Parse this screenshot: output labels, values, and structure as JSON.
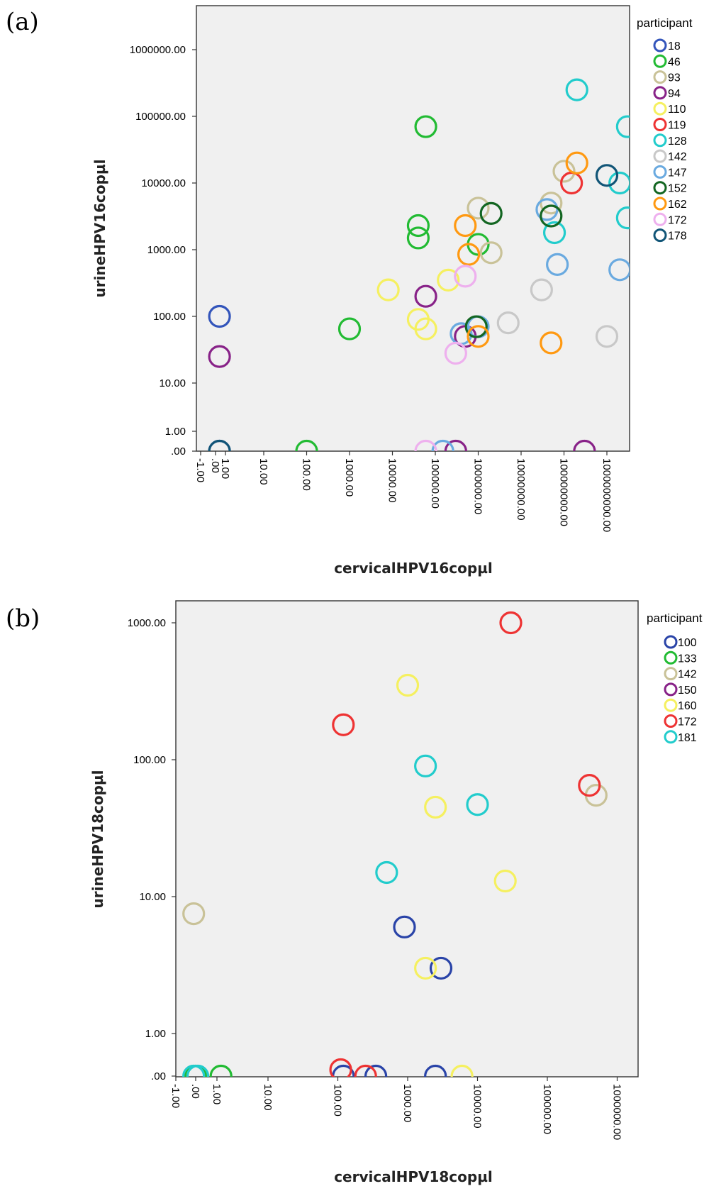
{
  "chart_data": [
    {
      "type": "scatter",
      "panel_label": "(a)",
      "xlabel": "cervicalHPV16copµl",
      "ylabel": "urineHPV16copµl",
      "x_scale": "log",
      "y_scale": "log",
      "xlim": [
        -1,
        3000000000
      ],
      "ylim": [
        0,
        4000000
      ],
      "x_ticks": [
        "-1.00",
        ".00",
        "1.00",
        "10.00",
        "100.00",
        "1000.00",
        "10000.00",
        "100000.00",
        "1000000.00",
        "10000000.00",
        "100000000.00",
        "1000000000.00"
      ],
      "y_ticks": [
        ".00",
        "1.00",
        "10.00",
        "100.00",
        "1000.00",
        "10000.00",
        "100000.00",
        "1000000.00"
      ],
      "grid": false,
      "legend_position": "right",
      "legend": {
        "title": "participant",
        "entries": [
          {
            "name": "18",
            "color": "#3355bb"
          },
          {
            "name": "46",
            "color": "#22bb33"
          },
          {
            "name": "93",
            "color": "#c9c298"
          },
          {
            "name": "94",
            "color": "#882288"
          },
          {
            "name": "110",
            "color": "#f5f060"
          },
          {
            "name": "119",
            "color": "#ee3333"
          },
          {
            "name": "128",
            "color": "#22cccc"
          },
          {
            "name": "142",
            "color": "#c8c8c8"
          },
          {
            "name": "147",
            "color": "#6aaae0"
          },
          {
            "name": "152",
            "color": "#136622"
          },
          {
            "name": "162",
            "color": "#ff9911"
          },
          {
            "name": "172",
            "color": "#eeb0ee"
          },
          {
            "name": "178",
            "color": "#115577"
          }
        ]
      },
      "series": [
        {
          "name": "18",
          "points": [
            [
              0.4,
              100
            ],
            [
              0.4,
              0
            ]
          ]
        },
        {
          "name": "46",
          "points": [
            [
              60000,
              70000
            ],
            [
              40000,
              2300
            ],
            [
              40000,
              1500
            ],
            [
              1000000,
              1200
            ],
            [
              1000,
              65
            ],
            [
              100,
              0
            ]
          ]
        },
        {
          "name": "93",
          "points": [
            [
              1000000,
              4200
            ],
            [
              50000000,
              5000
            ],
            [
              100000000,
              15000
            ],
            [
              2000000,
              900
            ]
          ]
        },
        {
          "name": "94",
          "points": [
            [
              0.4,
              25
            ],
            [
              60000,
              200
            ],
            [
              500000,
              50
            ],
            [
              300000,
              0
            ],
            [
              300000000,
              0
            ]
          ]
        },
        {
          "name": "110",
          "points": [
            [
              8000,
              250
            ],
            [
              200000,
              350
            ],
            [
              40000,
              90
            ],
            [
              60000,
              65
            ]
          ]
        },
        {
          "name": "119",
          "points": [
            [
              150000000,
              10000
            ]
          ]
        },
        {
          "name": "128",
          "points": [
            [
              200000000,
              250000
            ],
            [
              3000000000,
              70000
            ],
            [
              2000000000,
              10000
            ],
            [
              3000000000,
              3000
            ],
            [
              60000000,
              1800
            ]
          ]
        },
        {
          "name": "142",
          "points": [
            [
              30000000,
              250
            ],
            [
              5000000,
              80
            ],
            [
              1000000000,
              50
            ]
          ]
        },
        {
          "name": "147",
          "points": [
            [
              40000000,
              4000
            ],
            [
              70000000,
              600
            ],
            [
              2000000000,
              500
            ],
            [
              400000,
              55
            ],
            [
              1000000,
              70
            ],
            [
              150000,
              0
            ]
          ]
        },
        {
          "name": "152",
          "points": [
            [
              2000000,
              3500
            ],
            [
              50000000,
              3200
            ],
            [
              900000,
              70
            ]
          ]
        },
        {
          "name": "162",
          "points": [
            [
              500000,
              2300
            ],
            [
              600000,
              850
            ],
            [
              200000000,
              20000
            ],
            [
              50000000,
              40
            ],
            [
              1000000,
              50
            ]
          ]
        },
        {
          "name": "172",
          "points": [
            [
              500000,
              400
            ],
            [
              300000,
              28
            ],
            [
              60000,
              0
            ]
          ]
        },
        {
          "name": "178",
          "points": [
            [
              1000000000,
              13000
            ],
            [
              0.4,
              0
            ]
          ]
        }
      ]
    },
    {
      "type": "scatter",
      "panel_label": "(b)",
      "xlabel": "cervicalHPV18copµl",
      "ylabel": "urineHPV18copµl",
      "x_scale": "log",
      "y_scale": "log",
      "xlim": [
        -1,
        1000000
      ],
      "ylim": [
        0,
        2000
      ],
      "x_ticks": [
        "-1.00",
        ".00",
        "1.00",
        "10.00",
        "100.00",
        "1000.00",
        "10000.00",
        "100000.00",
        "1000000.00"
      ],
      "y_ticks": [
        ".00",
        "1.00",
        "10.00",
        "100.00",
        "1000.00"
      ],
      "grid": false,
      "legend_position": "right",
      "legend": {
        "title": "participant",
        "entries": [
          {
            "name": "100",
            "color": "#2a44a8"
          },
          {
            "name": "133",
            "color": "#22bb33"
          },
          {
            "name": "142",
            "color": "#c9c298"
          },
          {
            "name": "150",
            "color": "#882288"
          },
          {
            "name": "160",
            "color": "#f5f060"
          },
          {
            "name": "172",
            "color": "#ee3333"
          },
          {
            "name": "181",
            "color": "#22cccc"
          }
        ]
      },
      "series": [
        {
          "name": "100",
          "points": [
            [
              900,
              6
            ],
            [
              3000,
              3
            ],
            [
              120,
              0
            ],
            [
              350,
              0
            ],
            [
              2500,
              0
            ]
          ]
        },
        {
          "name": "133",
          "points": [
            [
              0,
              0
            ],
            [
              1.2,
              0
            ]
          ]
        },
        {
          "name": "142",
          "points": [
            [
              -0.1,
              7.5
            ],
            [
              500000,
              55
            ]
          ]
        },
        {
          "name": "150",
          "points": []
        },
        {
          "name": "160",
          "points": [
            [
              1000,
              350
            ],
            [
              2500,
              45
            ],
            [
              1800,
              3
            ],
            [
              25000,
              13
            ],
            [
              6000,
              0
            ]
          ]
        },
        {
          "name": "172",
          "points": [
            [
              120,
              180
            ],
            [
              30000,
              1000
            ],
            [
              400000,
              65
            ],
            [
              110,
              0.15
            ],
            [
              250,
              0
            ]
          ]
        },
        {
          "name": "181",
          "points": [
            [
              1800,
              90
            ],
            [
              10000,
              47
            ],
            [
              500,
              15
            ],
            [
              -0.1,
              0
            ],
            [
              0.1,
              0
            ]
          ]
        }
      ]
    }
  ]
}
